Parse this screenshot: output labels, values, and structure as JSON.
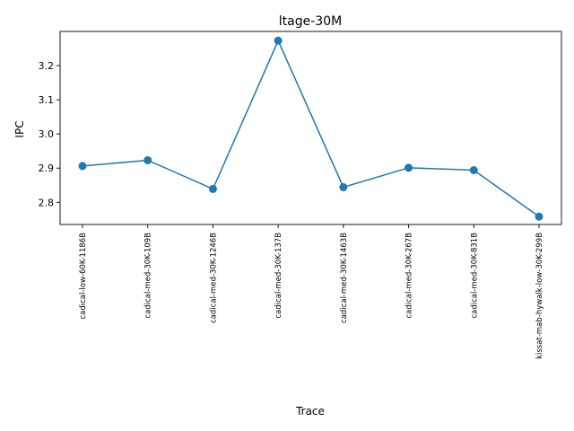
{
  "chart_data": {
    "type": "line",
    "title": "ltage-30M",
    "xlabel": "Trace",
    "ylabel": "IPC",
    "categories": [
      "cadical-low-60K-1186B",
      "cadical-med-30K-109B",
      "cadical-med-30K-1246B",
      "cadical-med-30K-137B",
      "cadical-med-30K-1463B",
      "cadical-med-30K-267B",
      "cadical-med-30K-831B",
      "kissat-mab-hywalk-low-30K-299B"
    ],
    "series": [
      {
        "values": [
          2.906,
          2.923,
          2.839,
          3.273,
          2.844,
          2.901,
          2.894,
          2.758
        ],
        "color": "#1f77b4",
        "marker": "circle"
      }
    ],
    "ylim": [
      2.735,
      3.3
    ],
    "yticks": [
      2.8,
      2.9,
      3.0,
      3.1,
      3.2
    ],
    "ytick_labels": [
      "2.8",
      "2.9",
      "3.0",
      "3.1",
      "3.2"
    ],
    "grid": false,
    "legend": "none"
  }
}
